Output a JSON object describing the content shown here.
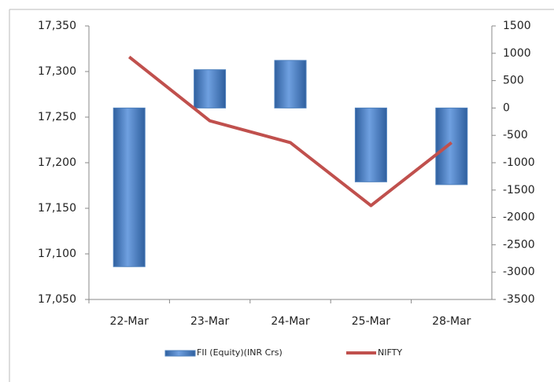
{
  "chart_data": {
    "type": "combo",
    "categories": [
      "22-Mar",
      "23-Mar",
      "24-Mar",
      "25-Mar",
      "28-Mar"
    ],
    "series": [
      {
        "name": "FII (Equity)(INR Crs)",
        "type": "bar",
        "axis": "y2",
        "color": "#4f81bd",
        "values": [
          -2900,
          700,
          870,
          -1350,
          -1400
        ]
      },
      {
        "name": "NIFTY",
        "type": "line",
        "axis": "y",
        "color": "#c0504d",
        "values": [
          17316,
          17246,
          17222,
          17153,
          17222
        ]
      }
    ],
    "ylim": [
      17050,
      17350
    ],
    "yticks": [
      {
        "value": 17050,
        "label": "17,050"
      },
      {
        "value": 17100,
        "label": "17,100"
      },
      {
        "value": 17150,
        "label": "17,150"
      },
      {
        "value": 17200,
        "label": "17,200"
      },
      {
        "value": 17250,
        "label": "17,250"
      },
      {
        "value": 17300,
        "label": "17,300"
      },
      {
        "value": 17350,
        "label": "17,350"
      }
    ],
    "y2lim": [
      -3500,
      1500
    ],
    "y2ticks": [
      -3500,
      -3000,
      -2500,
      -2000,
      -1500,
      -1000,
      -500,
      0,
      500,
      1000,
      1500
    ],
    "legend": "bottom"
  }
}
